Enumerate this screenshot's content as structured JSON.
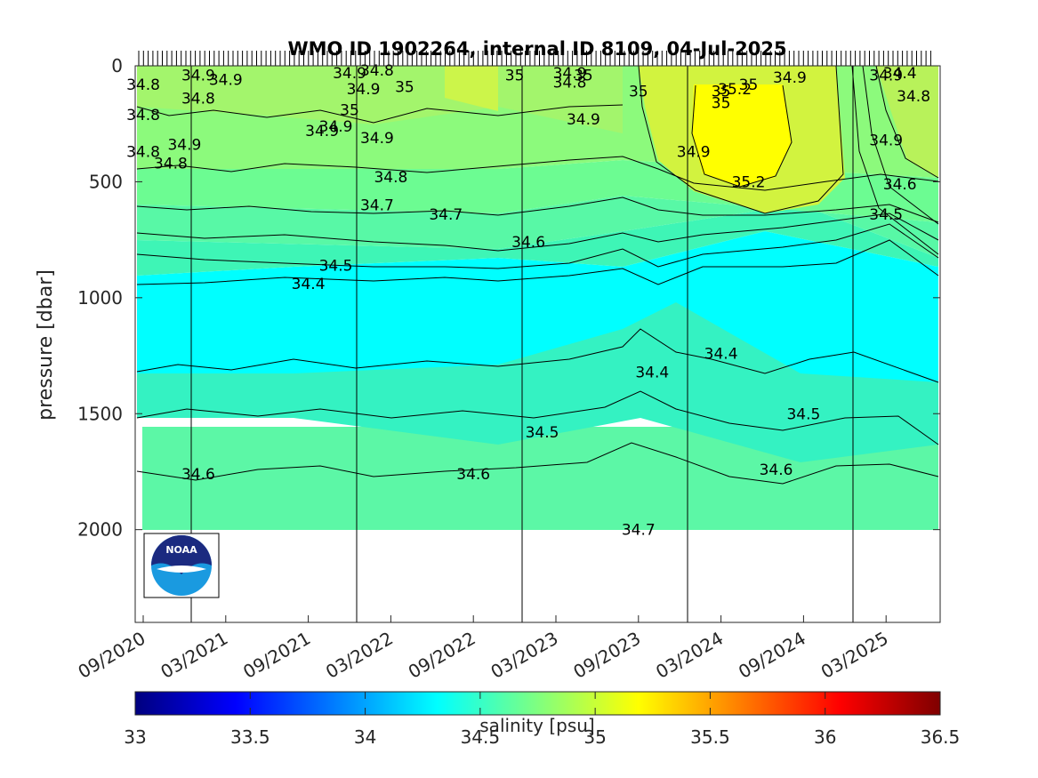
{
  "chart_data": {
    "type": "heatmap",
    "title": "WMO ID 1902264, internal ID 8109, 04-Jul-2025",
    "ylabel": "pressure [dbar]",
    "colorbar_label": "salinity [psu]",
    "y_reversed": true,
    "ylim": [
      0,
      2400
    ],
    "y_ticks": [
      0,
      500,
      1000,
      1500,
      2000
    ],
    "x_ticks": [
      "09/2020",
      "03/2021",
      "09/2021",
      "03/2022",
      "09/2022",
      "03/2023",
      "09/2023",
      "03/2024",
      "09/2024",
      "03/2025"
    ],
    "clim": [
      33,
      36.5
    ],
    "colorbar_ticks": [
      33,
      33.5,
      34,
      34.5,
      35,
      35.5,
      36,
      36.5
    ],
    "colormap": "jet",
    "contour_labels": [
      {
        "text": "34.8",
        "date": "2020-09",
        "p": 80
      },
      {
        "text": "34.9",
        "date": "2021-01",
        "p": 40
      },
      {
        "text": "34.9",
        "date": "2021-03",
        "p": 60
      },
      {
        "text": "34.8",
        "date": "2021-01",
        "p": 140
      },
      {
        "text": "34.8",
        "date": "2020-09",
        "p": 210
      },
      {
        "text": "34.8",
        "date": "2020-09",
        "p": 370
      },
      {
        "text": "34.9",
        "date": "2020-12",
        "p": 340
      },
      {
        "text": "34.8",
        "date": "2020-11",
        "p": 420
      },
      {
        "text": "34.9",
        "date": "2021-12",
        "p": 30
      },
      {
        "text": "34.8",
        "date": "2022-02",
        "p": 20
      },
      {
        "text": "34.9",
        "date": "2022-01",
        "p": 100
      },
      {
        "text": "35",
        "date": "2022-04",
        "p": 90
      },
      {
        "text": "35",
        "date": "2021-12",
        "p": 190
      },
      {
        "text": "34.9",
        "date": "2021-11",
        "p": 260
      },
      {
        "text": "34.9",
        "date": "2021-10",
        "p": 280
      },
      {
        "text": "34.9",
        "date": "2022-02",
        "p": 310
      },
      {
        "text": "34.8",
        "date": "2022-03",
        "p": 480
      },
      {
        "text": "34.7",
        "date": "2022-02",
        "p": 600
      },
      {
        "text": "34.7",
        "date": "2022-07",
        "p": 640
      },
      {
        "text": "34.6",
        "date": "2023-01",
        "p": 760
      },
      {
        "text": "34.5",
        "date": "2021-11",
        "p": 860
      },
      {
        "text": "34.4",
        "date": "2021-09",
        "p": 940
      },
      {
        "text": "35",
        "date": "2022-12",
        "p": 40
      },
      {
        "text": "34.9",
        "date": "2023-04",
        "p": 30
      },
      {
        "text": "34.8",
        "date": "2023-04",
        "p": 70
      },
      {
        "text": "35",
        "date": "2023-05",
        "p": 40
      },
      {
        "text": "34.9",
        "date": "2023-05",
        "p": 230
      },
      {
        "text": "35",
        "date": "2023-09",
        "p": 110
      },
      {
        "text": "35",
        "date": "2024-03",
        "p": 110
      },
      {
        "text": "35",
        "date": "2024-03",
        "p": 160
      },
      {
        "text": "35.2",
        "date": "2024-04",
        "p": 100
      },
      {
        "text": "35",
        "date": "2024-05",
        "p": 80
      },
      {
        "text": "34.9",
        "date": "2024-08",
        "p": 50
      },
      {
        "text": "34.9",
        "date": "2024-01",
        "p": 370
      },
      {
        "text": "35.2",
        "date": "2024-05",
        "p": 500
      },
      {
        "text": "34.4",
        "date": "2024-03",
        "p": 1240
      },
      {
        "text": "34.4",
        "date": "2023-10",
        "p": 1320
      },
      {
        "text": "34.5",
        "date": "2024-09",
        "p": 1500
      },
      {
        "text": "34.6",
        "date": "2024-07",
        "p": 1740
      },
      {
        "text": "34.7",
        "date": "2023-09",
        "p": 2000
      },
      {
        "text": "34.5",
        "date": "2023-02",
        "p": 1580
      },
      {
        "text": "34.6",
        "date": "2022-09",
        "p": 1760
      },
      {
        "text": "34.6",
        "date": "2021-01",
        "p": 1760
      },
      {
        "text": "34.9",
        "date": "2025-03",
        "p": 40
      },
      {
        "text": "34.4",
        "date": "2025-04",
        "p": 30
      },
      {
        "text": "34.8",
        "date": "2025-05",
        "p": 130
      },
      {
        "text": "34.9",
        "date": "2025-03",
        "p": 320
      },
      {
        "text": "34.6",
        "date": "2025-04",
        "p": 510
      },
      {
        "text": "34.5",
        "date": "2025-03",
        "p": 640
      }
    ]
  },
  "logo": {
    "text": "NOAA"
  }
}
